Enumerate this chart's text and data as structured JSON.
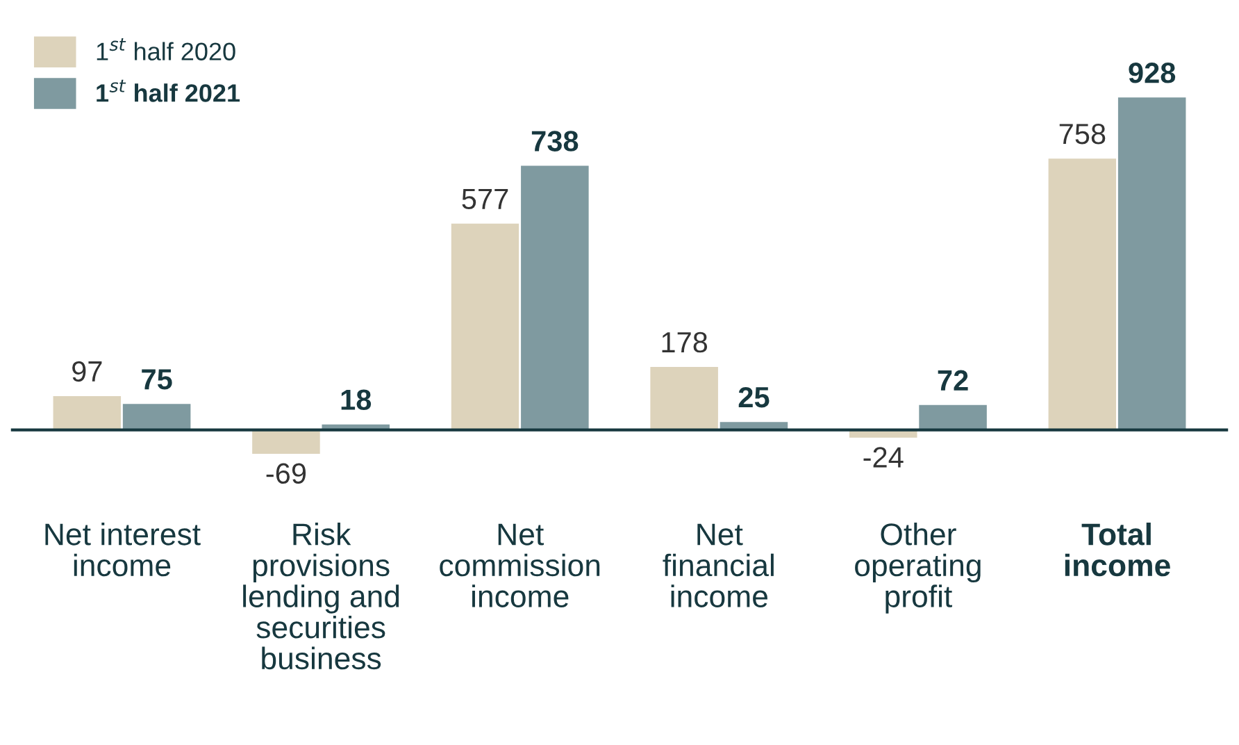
{
  "chart_data": {
    "type": "bar",
    "categories": [
      "Net interest\nincome",
      "Risk\nprovisions\nlending and\nsecurities\nbusiness",
      "Net\ncommission\nincome",
      "Net\nfinancial\nincome",
      "Other\noperating\nprofit",
      "Total\nincome"
    ],
    "series": [
      {
        "name": "1$^{st}$ half 2020",
        "color": "#ddd3bb",
        "values": [
          97,
          -69,
          577,
          178,
          -24,
          758
        ]
      },
      {
        "name": "1$^{st}$ half 2021",
        "color": "#7f9aa0",
        "values": [
          75,
          18,
          738,
          25,
          72,
          928
        ]
      }
    ],
    "data_labels": true,
    "tick_labels": "x",
    "legend": "top left"
  }
}
